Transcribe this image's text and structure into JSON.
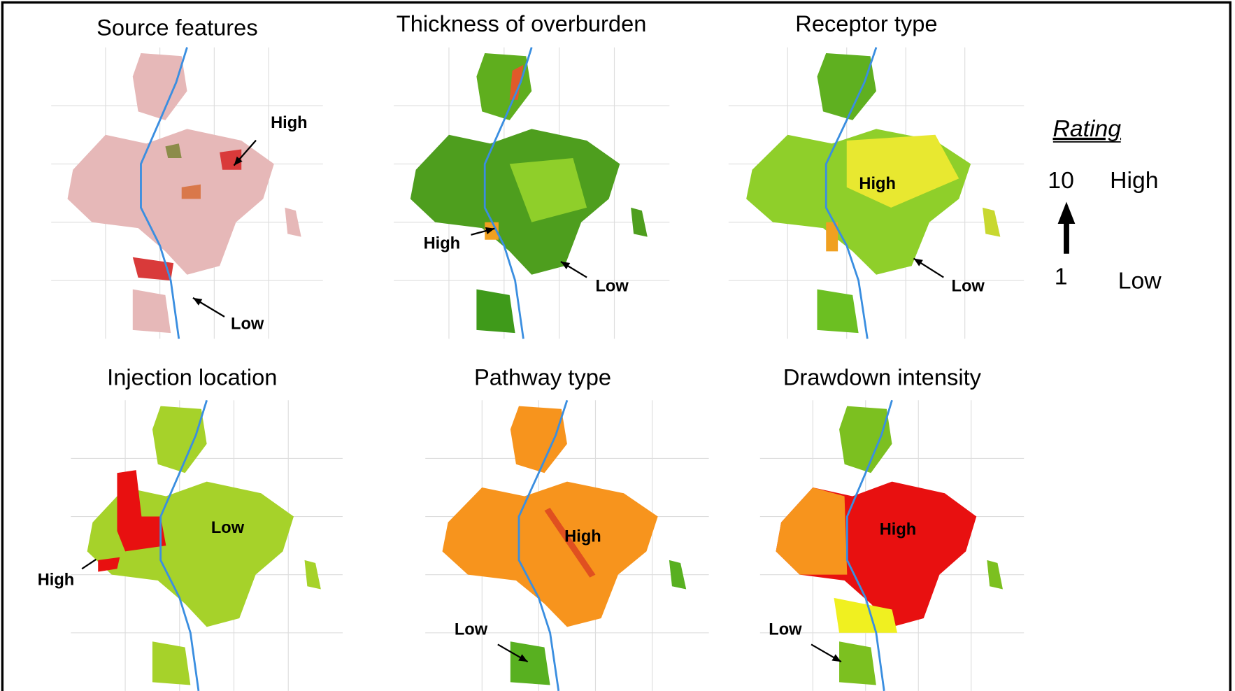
{
  "panels": [
    {
      "title": "Source features",
      "annotations": [
        {
          "text": "High"
        },
        {
          "text": "Low"
        }
      ]
    },
    {
      "title": "Thickness of overburden",
      "annotations": [
        {
          "text": "High"
        },
        {
          "text": "Low"
        }
      ]
    },
    {
      "title": "Receptor type",
      "annotations": [
        {
          "text": "High"
        },
        {
          "text": "Low"
        }
      ]
    },
    {
      "title": "Injection location",
      "annotations": [
        {
          "text": "Low"
        },
        {
          "text": "High"
        }
      ]
    },
    {
      "title": "Pathway type",
      "annotations": [
        {
          "text": "High"
        },
        {
          "text": "Low"
        }
      ]
    },
    {
      "title": "Drawdown intensity",
      "annotations": [
        {
          "text": "High"
        },
        {
          "text": "Low"
        }
      ]
    }
  ],
  "legend": {
    "title": "Rating",
    "top_value": "10",
    "top_label": "High",
    "bottom_value": "1",
    "bottom_label": "Low"
  }
}
